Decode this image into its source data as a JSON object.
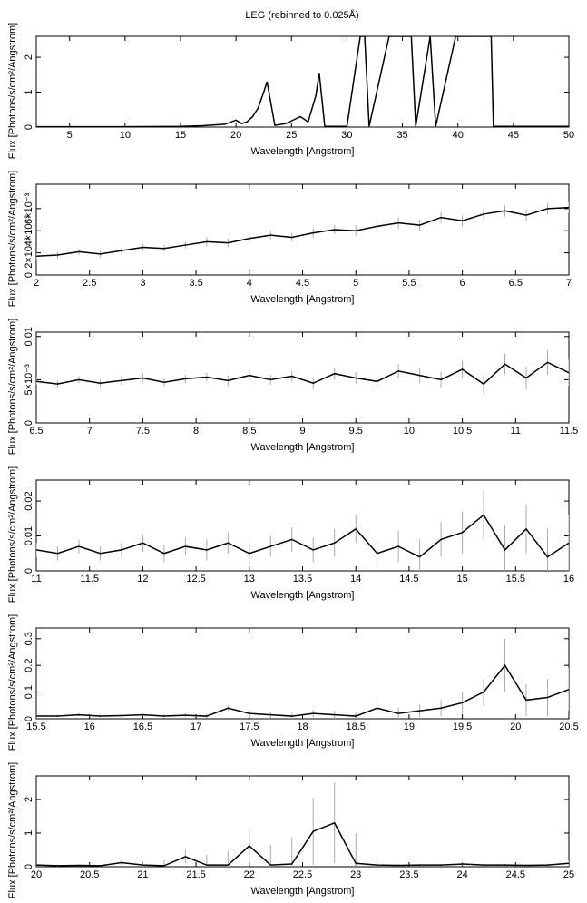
{
  "chart_data": [
    {
      "type": "line",
      "title": "LEG (rebinned to 0.025Å)",
      "xlabel": "Wavelength [Angstrom]",
      "ylabel": "Flux [Photons/s/cm²/Angstrom]",
      "color": "#000000",
      "xlim": [
        2,
        50
      ],
      "ylim": [
        0,
        2.6
      ],
      "xticks": [
        5,
        10,
        15,
        20,
        25,
        30,
        35,
        40,
        45,
        50
      ],
      "yticks": [
        0,
        1,
        2
      ],
      "x": [
        2,
        5,
        10,
        15,
        17,
        19,
        20,
        20.5,
        21,
        21.5,
        22,
        22.5,
        22.8,
        23.5,
        24.5,
        25.8,
        26.5,
        27.2,
        27.5,
        28,
        30,
        31.2,
        31.6,
        32,
        33.8,
        34.5,
        35.2,
        35.8,
        36.2,
        37.5,
        38,
        39.8,
        40.3,
        40.8,
        41.5,
        42.2,
        43,
        43.2,
        50
      ],
      "values": [
        0.01,
        0.01,
        0.01,
        0.02,
        0.04,
        0.08,
        0.2,
        0.1,
        0.15,
        0.3,
        0.55,
        1.0,
        1.3,
        0.05,
        0.1,
        0.3,
        0.15,
        0.9,
        1.55,
        0.02,
        0.02,
        2.6,
        2.6,
        0.02,
        2.6,
        2.6,
        2.6,
        2.6,
        0.02,
        2.6,
        0.02,
        2.6,
        2.6,
        2.6,
        2.6,
        2.6,
        2.6,
        0.02,
        0.02
      ]
    },
    {
      "type": "line",
      "xlabel": "Wavelength [Angstrom]",
      "ylabel": "Flux [Photons/s/cm²/Angstrom]",
      "color": "#000000",
      "xlim": [
        2,
        7
      ],
      "ylim": [
        0,
        0.0082
      ],
      "xticks": [
        2,
        2.5,
        3,
        3.5,
        4,
        4.5,
        5,
        5.5,
        6,
        6.5,
        7
      ],
      "yticks": [
        0,
        {
          "value": 0.002,
          "label": "2×10⁻³"
        },
        {
          "value": 0.004,
          "label": "4×10⁻³"
        },
        {
          "value": 0.006,
          "label": "6×10⁻³"
        }
      ],
      "x": [
        2,
        2.2,
        2.4,
        2.6,
        2.8,
        3,
        3.2,
        3.4,
        3.6,
        3.8,
        4,
        4.2,
        4.4,
        4.6,
        4.8,
        5,
        5.2,
        5.4,
        5.6,
        5.8,
        6,
        6.2,
        6.4,
        6.6,
        6.8,
        7
      ],
      "values": [
        0.0017,
        0.0018,
        0.0021,
        0.0019,
        0.0022,
        0.0025,
        0.0024,
        0.0027,
        0.003,
        0.0029,
        0.0033,
        0.0036,
        0.0034,
        0.0038,
        0.0041,
        0.004,
        0.0044,
        0.0047,
        0.0045,
        0.0052,
        0.0049,
        0.0055,
        0.0058,
        0.0054,
        0.006,
        0.0061
      ],
      "errors": [
        0.0003,
        0.0003,
        0.0003,
        0.0003,
        0.0003,
        0.0003,
        0.0003,
        0.0003,
        0.0004,
        0.0004,
        0.0004,
        0.0004,
        0.0004,
        0.0004,
        0.0004,
        0.0005,
        0.0005,
        0.0005,
        0.0005,
        0.0005,
        0.0005,
        0.0005,
        0.0005,
        0.0005,
        0.0005,
        0.0005
      ]
    },
    {
      "type": "line",
      "xlabel": "Wavelength [Angstrom]",
      "ylabel": "Flux [Photons/s/cm²/Angstrom]",
      "color": "#000000",
      "xlim": [
        6.5,
        11.5
      ],
      "ylim": [
        0,
        0.0105
      ],
      "xticks": [
        6.5,
        7,
        7.5,
        8,
        8.5,
        9,
        9.5,
        10,
        10.5,
        11,
        11.5
      ],
      "yticks": [
        0,
        {
          "value": 0.005,
          "label": "5×10⁻³"
        },
        0.01
      ],
      "x": [
        6.5,
        6.7,
        6.9,
        7.1,
        7.3,
        7.5,
        7.7,
        7.9,
        8.1,
        8.3,
        8.5,
        8.7,
        8.9,
        9.1,
        9.3,
        9.5,
        9.7,
        9.9,
        10.1,
        10.3,
        10.5,
        10.7,
        10.9,
        11.1,
        11.3,
        11.5
      ],
      "values": [
        0.0048,
        0.0045,
        0.005,
        0.0046,
        0.0049,
        0.0052,
        0.0047,
        0.0051,
        0.0053,
        0.0049,
        0.0055,
        0.005,
        0.0054,
        0.0046,
        0.0057,
        0.0052,
        0.0048,
        0.006,
        0.0055,
        0.005,
        0.0062,
        0.0045,
        0.0068,
        0.0052,
        0.007,
        0.0058
      ],
      "errors": [
        0.0004,
        0.0004,
        0.0004,
        0.0004,
        0.0005,
        0.0005,
        0.0005,
        0.0005,
        0.0005,
        0.0006,
        0.0006,
        0.0006,
        0.0006,
        0.0007,
        0.0007,
        0.0007,
        0.0008,
        0.0008,
        0.0009,
        0.0009,
        0.001,
        0.0011,
        0.0012,
        0.0013,
        0.0014,
        0.0015
      ]
    },
    {
      "type": "line",
      "xlabel": "Wavelength [Angstrom]",
      "ylabel": "Flux [Photons/s/cm²/Angstrom]",
      "color": "#000000",
      "xlim": [
        11,
        16
      ],
      "ylim": [
        0,
        0.026
      ],
      "xticks": [
        11,
        11.5,
        12,
        12.5,
        13,
        13.5,
        14,
        14.5,
        15,
        15.5,
        16
      ],
      "yticks": [
        0,
        0.01,
        0.02
      ],
      "x": [
        11,
        11.2,
        11.4,
        11.6,
        11.8,
        12,
        12.2,
        12.4,
        12.6,
        12.8,
        13,
        13.2,
        13.4,
        13.6,
        13.8,
        14,
        14.2,
        14.4,
        14.6,
        14.8,
        15,
        15.2,
        15.4,
        15.6,
        15.8,
        16
      ],
      "values": [
        0.006,
        0.005,
        0.007,
        0.005,
        0.006,
        0.008,
        0.005,
        0.007,
        0.006,
        0.008,
        0.005,
        0.007,
        0.009,
        0.006,
        0.008,
        0.012,
        0.005,
        0.007,
        0.004,
        0.009,
        0.011,
        0.016,
        0.006,
        0.012,
        0.004,
        0.008
      ],
      "errors": [
        0.002,
        0.002,
        0.002,
        0.002,
        0.002,
        0.0025,
        0.0025,
        0.0025,
        0.003,
        0.003,
        0.003,
        0.003,
        0.0035,
        0.0035,
        0.004,
        0.004,
        0.004,
        0.0045,
        0.005,
        0.005,
        0.006,
        0.007,
        0.007,
        0.007,
        0.008,
        0.008
      ]
    },
    {
      "type": "line",
      "xlabel": "Wavelength [Angstrom]",
      "ylabel": "Flux [Photons/s/cm²/Angstrom]",
      "color": "#000000",
      "xlim": [
        15.5,
        20.5
      ],
      "ylim": [
        0,
        0.34
      ],
      "xticks": [
        15.5,
        16,
        16.5,
        17,
        17.5,
        18,
        18.5,
        19,
        19.5,
        20,
        20.5
      ],
      "yticks": [
        0,
        0.1,
        0.2,
        0.3
      ],
      "x": [
        15.5,
        15.7,
        15.9,
        16.1,
        16.3,
        16.5,
        16.7,
        16.9,
        17.1,
        17.3,
        17.5,
        17.7,
        17.9,
        18.1,
        18.3,
        18.5,
        18.7,
        18.9,
        19.1,
        19.3,
        19.5,
        19.7,
        19.9,
        20.1,
        20.3,
        20.5
      ],
      "values": [
        0.01,
        0.01,
        0.015,
        0.01,
        0.012,
        0.015,
        0.01,
        0.013,
        0.01,
        0.04,
        0.02,
        0.015,
        0.01,
        0.02,
        0.015,
        0.01,
        0.04,
        0.02,
        0.03,
        0.04,
        0.06,
        0.1,
        0.2,
        0.07,
        0.08,
        0.11
      ],
      "errors": [
        0.005,
        0.005,
        0.005,
        0.005,
        0.006,
        0.006,
        0.007,
        0.007,
        0.008,
        0.01,
        0.01,
        0.012,
        0.012,
        0.014,
        0.015,
        0.016,
        0.02,
        0.022,
        0.025,
        0.03,
        0.04,
        0.05,
        0.1,
        0.06,
        0.07,
        0.08
      ]
    },
    {
      "type": "line",
      "xlabel": "Wavelength [Angstrom]",
      "ylabel": "Flux [Photons/s/cm²/Angstrom]",
      "color": "#000000",
      "xlim": [
        20,
        25
      ],
      "ylim": [
        0,
        2.7
      ],
      "xticks": [
        20,
        20.5,
        21,
        21.5,
        22,
        22.5,
        23,
        23.5,
        24,
        24.5,
        25
      ],
      "yticks": [
        0,
        1,
        2
      ],
      "x": [
        20,
        20.2,
        20.4,
        20.6,
        20.8,
        21,
        21.2,
        21.4,
        21.6,
        21.8,
        22,
        22.2,
        22.4,
        22.6,
        22.8,
        23,
        23.2,
        23.4,
        23.6,
        23.8,
        24,
        24.2,
        24.4,
        24.6,
        24.8,
        25
      ],
      "values": [
        0.05,
        0.03,
        0.04,
        0.03,
        0.12,
        0.05,
        0.03,
        0.3,
        0.05,
        0.05,
        0.62,
        0.05,
        0.08,
        1.05,
        1.3,
        0.1,
        0.05,
        0.04,
        0.05,
        0.05,
        0.08,
        0.05,
        0.05,
        0.04,
        0.05,
        0.1
      ],
      "errors": [
        0.03,
        0.03,
        0.03,
        0.03,
        0.08,
        0.1,
        0.15,
        0.2,
        0.3,
        0.4,
        0.5,
        0.6,
        0.8,
        1.0,
        1.2,
        0.9,
        0.2,
        0.05,
        0.04,
        0.04,
        0.05,
        0.04,
        0.04,
        0.04,
        0.04,
        0.08
      ]
    }
  ]
}
